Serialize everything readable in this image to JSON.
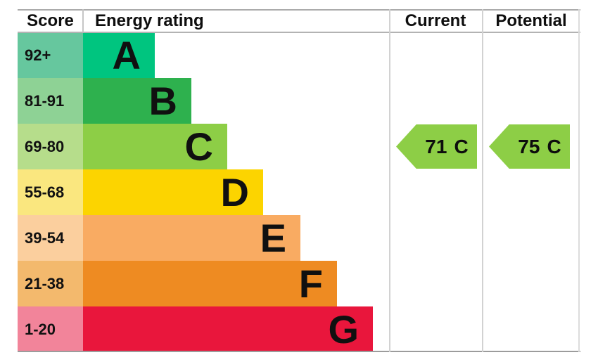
{
  "header": {
    "score": "Score",
    "energy_rating": "Energy rating",
    "current": "Current",
    "potential": "Potential"
  },
  "bands": [
    {
      "letter": "A",
      "score": "92+",
      "color": "#00c57f",
      "tint": "#66c79e"
    },
    {
      "letter": "B",
      "score": "81-91",
      "color": "#2eb14e",
      "tint": "#8ed295"
    },
    {
      "letter": "C",
      "score": "69-80",
      "color": "#8dce46",
      "tint": "#b6dd8b"
    },
    {
      "letter": "D",
      "score": "55-68",
      "color": "#fcd400",
      "tint": "#fae77f"
    },
    {
      "letter": "E",
      "score": "39-54",
      "color": "#f9ab62",
      "tint": "#fbcf9e"
    },
    {
      "letter": "F",
      "score": "21-38",
      "color": "#ee8b22",
      "tint": "#f3b96d"
    },
    {
      "letter": "G",
      "score": "1-20",
      "color": "#e9163c",
      "tint": "#f2849a"
    }
  ],
  "current": {
    "value": "71",
    "band": "C",
    "band_index": 2,
    "color": "#8dce46"
  },
  "potential": {
    "value": "75",
    "band": "C",
    "band_index": 2,
    "color": "#8dce46"
  },
  "chart_data": {
    "type": "bar",
    "title": "Energy rating",
    "categories": [
      "A",
      "B",
      "C",
      "D",
      "E",
      "F",
      "G"
    ],
    "score_ranges": [
      "92+",
      "81-91",
      "69-80",
      "55-68",
      "39-54",
      "21-38",
      "1-20"
    ],
    "band_colors": [
      "#00c57f",
      "#2eb14e",
      "#8dce46",
      "#fcd400",
      "#f9ab62",
      "#ee8b22",
      "#e9163c"
    ],
    "bar_relative_lengths": [
      1,
      1.51,
      2.01,
      2.51,
      3.03,
      3.54,
      4.04
    ],
    "current": {
      "value": 71,
      "band": "C"
    },
    "potential": {
      "value": 75,
      "band": "C"
    },
    "columns": [
      "Score",
      "Energy rating",
      "Current",
      "Potential"
    ],
    "legend_position": "none",
    "grid": "column dividers only"
  }
}
